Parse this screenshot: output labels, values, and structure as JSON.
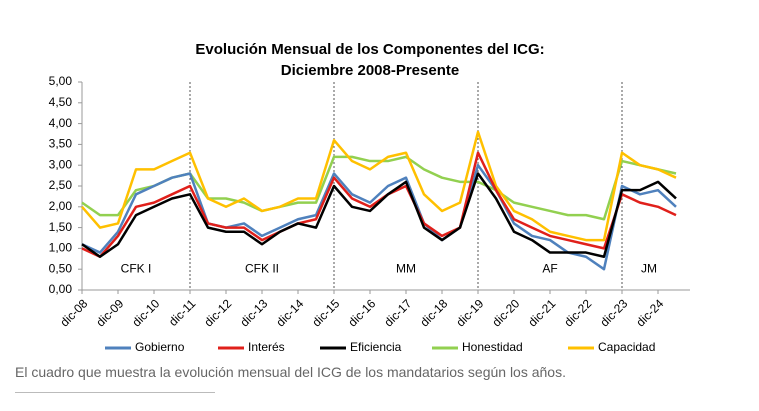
{
  "chart_data": {
    "type": "line",
    "title": [
      "Evolución Mensual de los Componentes del ICG:",
      "Diciembre 2008-Presente"
    ],
    "categories": [
      "dic-08",
      null,
      "dic-09",
      null,
      "dic-10",
      null,
      "dic-11",
      null,
      "dic-12",
      null,
      "dic-13",
      null,
      "dic-14",
      null,
      "dic-15",
      null,
      "dic-16",
      null,
      "dic-17",
      null,
      "dic-18",
      null,
      "dic-19",
      null,
      "dic-20",
      null,
      "dic-21",
      null,
      "dic-22",
      null,
      "dic-23",
      null,
      "dic-24",
      null
    ],
    "series": [
      {
        "name": "Gobierno",
        "color": "#4f81bd",
        "values": [
          1.1,
          0.9,
          1.4,
          2.3,
          2.5,
          2.7,
          2.8,
          1.6,
          1.5,
          1.6,
          1.3,
          1.5,
          1.7,
          1.8,
          2.8,
          2.3,
          2.1,
          2.5,
          2.7,
          1.6,
          1.2,
          1.5,
          3.0,
          2.4,
          1.6,
          1.3,
          1.2,
          0.9,
          0.8,
          0.5,
          2.5,
          2.3,
          2.4,
          2.0
        ]
      },
      {
        "name": "Interés",
        "color": "#e0201b",
        "values": [
          1.0,
          0.8,
          1.3,
          2.0,
          2.1,
          2.3,
          2.5,
          1.6,
          1.5,
          1.5,
          1.2,
          1.4,
          1.6,
          1.7,
          2.7,
          2.2,
          2.0,
          2.3,
          2.5,
          1.6,
          1.3,
          1.5,
          3.3,
          2.4,
          1.7,
          1.5,
          1.3,
          1.2,
          1.1,
          1.0,
          2.3,
          2.1,
          2.0,
          1.8
        ]
      },
      {
        "name": "Eficiencia",
        "color": "#000000",
        "values": [
          1.1,
          0.8,
          1.1,
          1.8,
          2.0,
          2.2,
          2.3,
          1.5,
          1.4,
          1.4,
          1.1,
          1.4,
          1.6,
          1.5,
          2.5,
          2.0,
          1.9,
          2.3,
          2.6,
          1.5,
          1.2,
          1.5,
          2.8,
          2.2,
          1.4,
          1.2,
          0.9,
          0.9,
          0.9,
          0.8,
          2.4,
          2.4,
          2.6,
          2.2
        ]
      },
      {
        "name": "Honestidad",
        "color": "#92d050",
        "values": [
          2.1,
          1.8,
          1.8,
          2.4,
          2.5,
          2.7,
          2.8,
          2.2,
          2.2,
          2.1,
          1.9,
          2.0,
          2.1,
          2.1,
          3.2,
          3.2,
          3.1,
          3.1,
          3.2,
          2.9,
          2.7,
          2.6,
          2.6,
          2.4,
          2.1,
          2.0,
          1.9,
          1.8,
          1.8,
          1.7,
          3.1,
          3.0,
          2.9,
          2.8
        ]
      },
      {
        "name": "Capacidad",
        "color": "#ffc000",
        "values": [
          2.0,
          1.5,
          1.6,
          2.9,
          2.9,
          3.1,
          3.3,
          2.2,
          2.0,
          2.2,
          1.9,
          2.0,
          2.2,
          2.2,
          3.6,
          3.1,
          2.9,
          3.2,
          3.3,
          2.3,
          1.9,
          2.1,
          3.8,
          2.5,
          1.9,
          1.7,
          1.4,
          1.3,
          1.2,
          1.2,
          3.3,
          3.0,
          2.9,
          2.7
        ]
      }
    ],
    "ylim": [
      0,
      5
    ],
    "yticks": [
      {
        "value": 0,
        "label": "0,00"
      },
      {
        "value": 0.5,
        "label": "0,50"
      },
      {
        "value": 1,
        "label": "1,00"
      },
      {
        "value": 1.5,
        "label": "1,50"
      },
      {
        "value": 2,
        "label": "2,00"
      },
      {
        "value": 2.5,
        "label": "2,50"
      },
      {
        "value": 3,
        "label": "3,00"
      },
      {
        "value": 3.5,
        "label": "3,50"
      },
      {
        "value": 4,
        "label": "4,00"
      },
      {
        "value": 4.5,
        "label": "4,50"
      },
      {
        "value": 5,
        "label": "5,00"
      }
    ],
    "dividers": [
      "dic-11",
      "dic-15",
      "dic-19",
      "dic-23"
    ],
    "periods": [
      "CFK I",
      "CFK II",
      "MM",
      "AF",
      "JM"
    ],
    "grid": false
  },
  "caption": "El cuadro que muestra la evolución mensual del ICG de los mandatarios según los años."
}
